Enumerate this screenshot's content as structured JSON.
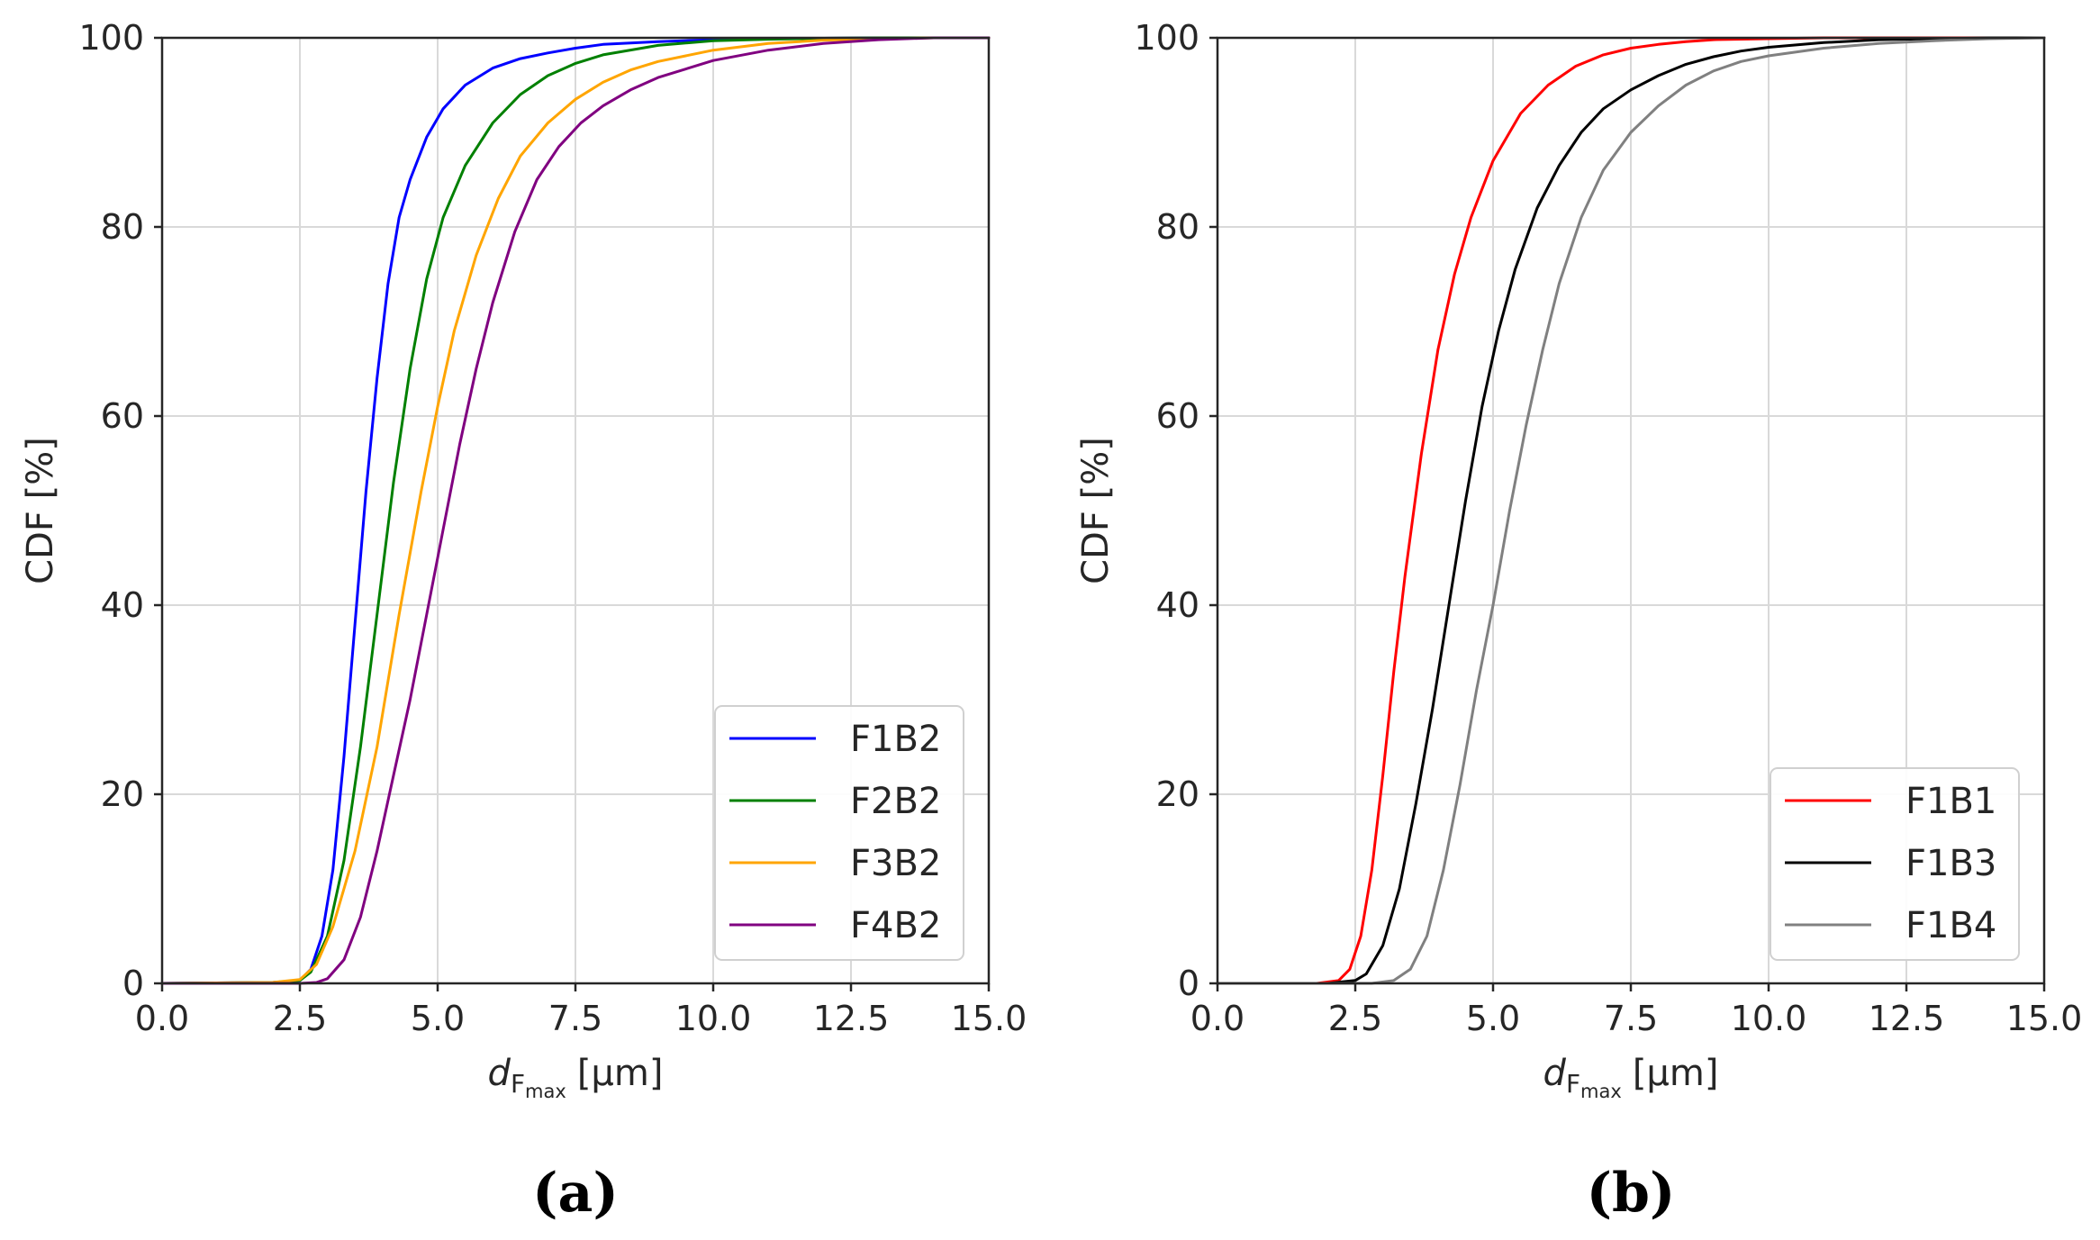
{
  "chart_data": [
    {
      "type": "line",
      "panel": "a",
      "caption": "(a)",
      "xlabel_main": "d",
      "xlabel_sub": "F",
      "xlabel_subsub": "max",
      "xlabel_unit": "[µm]",
      "ylabel": "CDF [%]",
      "xlim": [
        0,
        15
      ],
      "ylim": [
        0,
        100
      ],
      "xticks": [
        0,
        2.5,
        5,
        7.5,
        10,
        12.5,
        15
      ],
      "xtick_labels": [
        "0.0",
        "2.5",
        "5.0",
        "7.5",
        "10.0",
        "12.5",
        "15.0"
      ],
      "yticks": [
        0,
        20,
        40,
        60,
        80,
        100
      ],
      "ytick_labels": [
        "0",
        "20",
        "40",
        "60",
        "80",
        "100"
      ],
      "grid": true,
      "legend_position": "lower-right",
      "series": [
        {
          "name": "F1B2",
          "color": "#0000ff",
          "x": [
            0,
            2.0,
            2.5,
            2.7,
            2.9,
            3.1,
            3.3,
            3.5,
            3.7,
            3.9,
            4.1,
            4.3,
            4.5,
            4.8,
            5.1,
            5.5,
            6.0,
            6.5,
            7.0,
            7.5,
            8.0,
            9.0,
            10.0,
            11.0,
            12.0,
            13.0,
            14.0,
            15.0
          ],
          "y": [
            0,
            0.1,
            0.3,
            1.5,
            5,
            12,
            24,
            38,
            52,
            64,
            74,
            81,
            85,
            89.5,
            92.5,
            95,
            96.8,
            97.8,
            98.4,
            98.9,
            99.3,
            99.6,
            99.8,
            99.9,
            99.95,
            100,
            100,
            100
          ]
        },
        {
          "name": "F2B2",
          "color": "#008000",
          "x": [
            0,
            2.0,
            2.5,
            2.7,
            3.0,
            3.3,
            3.6,
            3.9,
            4.2,
            4.5,
            4.8,
            5.1,
            5.5,
            6.0,
            6.5,
            7.0,
            7.5,
            8.0,
            9.0,
            10.0,
            11.0,
            12.0,
            13.0,
            14.0,
            15.0
          ],
          "y": [
            0,
            0.1,
            0.3,
            1.2,
            5,
            13,
            25,
            39,
            53,
            65,
            74.5,
            81,
            86.5,
            91,
            94,
            96,
            97.3,
            98.2,
            99.2,
            99.7,
            99.85,
            99.95,
            100,
            100,
            100
          ]
        },
        {
          "name": "F3B2",
          "color": "#ffa500",
          "x": [
            0,
            2.0,
            2.5,
            2.8,
            3.1,
            3.5,
            3.9,
            4.3,
            4.7,
            5.0,
            5.3,
            5.7,
            6.1,
            6.5,
            7.0,
            7.5,
            8.0,
            8.5,
            9.0,
            10.0,
            11.0,
            12.0,
            13.0,
            14.0,
            15.0
          ],
          "y": [
            0,
            0.1,
            0.4,
            2,
            6,
            14,
            25,
            39,
            52,
            61,
            69,
            77,
            83,
            87.5,
            91,
            93.5,
            95.3,
            96.6,
            97.5,
            98.7,
            99.4,
            99.75,
            99.9,
            100,
            100
          ]
        },
        {
          "name": "F4B2",
          "color": "#800080",
          "x": [
            0,
            2.5,
            2.8,
            3.0,
            3.3,
            3.6,
            3.9,
            4.2,
            4.5,
            4.8,
            5.1,
            5.4,
            5.7,
            6.0,
            6.4,
            6.8,
            7.2,
            7.6,
            8.0,
            8.5,
            9.0,
            10.0,
            11.0,
            12.0,
            13.0,
            14.0,
            15.0
          ],
          "y": [
            0,
            0,
            0.1,
            0.5,
            2.5,
            7,
            14,
            22,
            30,
            39,
            48,
            57,
            65,
            72,
            79.5,
            85,
            88.5,
            91,
            92.8,
            94.5,
            95.8,
            97.6,
            98.7,
            99.4,
            99.8,
            100,
            100
          ]
        }
      ]
    },
    {
      "type": "line",
      "panel": "b",
      "caption": "(b)",
      "xlabel_main": "d",
      "xlabel_sub": "F",
      "xlabel_subsub": "max",
      "xlabel_unit": "[µm]",
      "ylabel": "CDF [%]",
      "xlim": [
        0,
        15
      ],
      "ylim": [
        0,
        100
      ],
      "xticks": [
        0,
        2.5,
        5,
        7.5,
        10,
        12.5,
        15
      ],
      "xtick_labels": [
        "0.0",
        "2.5",
        "5.0",
        "7.5",
        "10.0",
        "12.5",
        "15.0"
      ],
      "yticks": [
        0,
        20,
        40,
        60,
        80,
        100
      ],
      "ytick_labels": [
        "0",
        "20",
        "40",
        "60",
        "80",
        "100"
      ],
      "grid": true,
      "legend_position": "lower-right",
      "series": [
        {
          "name": "F1B1",
          "color": "#ff0000",
          "x": [
            0,
            1.8,
            2.2,
            2.4,
            2.6,
            2.8,
            3.0,
            3.2,
            3.4,
            3.7,
            4.0,
            4.3,
            4.6,
            5.0,
            5.5,
            6.0,
            6.5,
            7.0,
            7.5,
            8.0,
            8.5,
            9.0,
            10.0,
            11.0,
            12.0,
            13.0,
            14.0,
            15.0
          ],
          "y": [
            0,
            0,
            0.3,
            1.5,
            5,
            12,
            22,
            33,
            43,
            56,
            67,
            75,
            81,
            87,
            92,
            95,
            97,
            98.2,
            98.9,
            99.3,
            99.6,
            99.8,
            99.9,
            100,
            100,
            100,
            100,
            100
          ]
        },
        {
          "name": "F1B3",
          "color": "#000000",
          "x": [
            0,
            2.0,
            2.5,
            2.7,
            3.0,
            3.3,
            3.6,
            3.9,
            4.2,
            4.5,
            4.8,
            5.1,
            5.4,
            5.8,
            6.2,
            6.6,
            7.0,
            7.5,
            8.0,
            8.5,
            9.0,
            9.5,
            10.0,
            11.0,
            12.0,
            13.0,
            14.0,
            15.0
          ],
          "y": [
            0,
            0,
            0.3,
            1,
            4,
            10,
            19,
            29,
            40,
            51,
            61,
            69,
            75.5,
            82,
            86.5,
            90,
            92.5,
            94.5,
            96,
            97.2,
            98,
            98.6,
            99,
            99.5,
            99.8,
            99.9,
            100,
            100
          ]
        },
        {
          "name": "F1B4",
          "color": "#808080",
          "x": [
            0,
            2.8,
            3.2,
            3.5,
            3.8,
            4.1,
            4.4,
            4.7,
            5.0,
            5.3,
            5.6,
            5.9,
            6.2,
            6.6,
            7.0,
            7.5,
            8.0,
            8.5,
            9.0,
            9.5,
            10.0,
            11.0,
            12.0,
            13.0,
            14.0,
            15.0
          ],
          "y": [
            0,
            0,
            0.3,
            1.5,
            5,
            12,
            21,
            31,
            40,
            50,
            59,
            67,
            74,
            81,
            86,
            90,
            92.8,
            95,
            96.5,
            97.5,
            98.1,
            98.9,
            99.4,
            99.7,
            99.9,
            100
          ]
        }
      ]
    }
  ]
}
